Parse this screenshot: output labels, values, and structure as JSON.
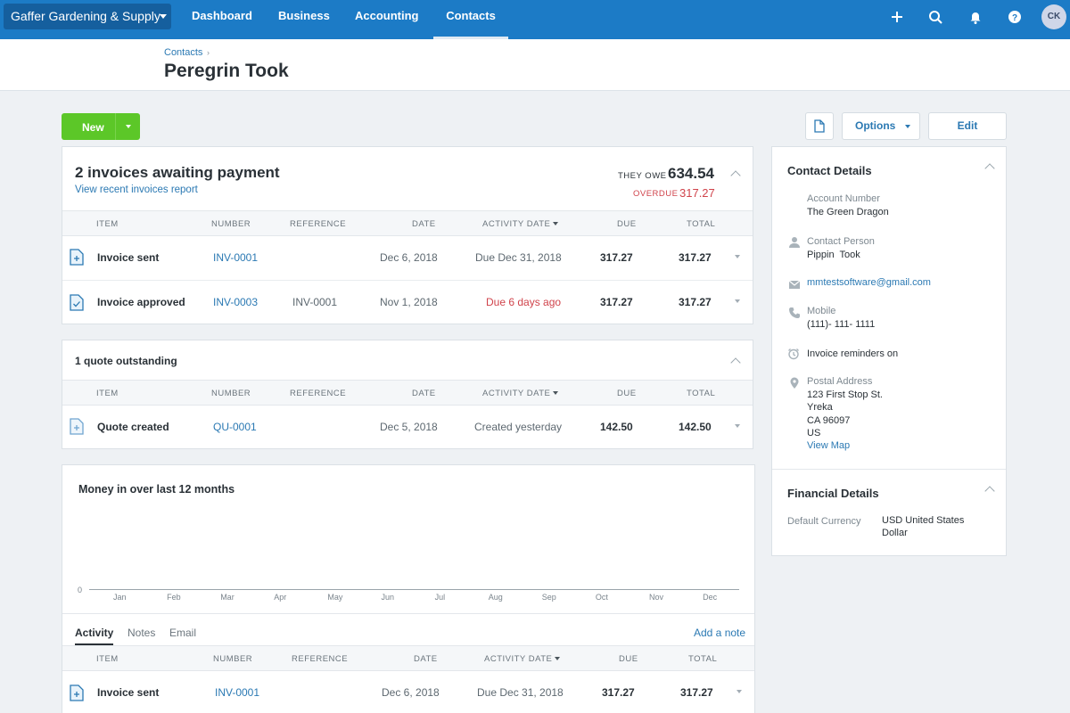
{
  "nav": {
    "org_name": "Gaffer Gardening & Supply",
    "links": [
      "Dashboard",
      "Business",
      "Accounting",
      "Contacts"
    ],
    "active": "Contacts",
    "avatar_initials": "CK"
  },
  "header": {
    "breadcrumb": "Contacts",
    "title": "Peregrin Took"
  },
  "actions": {
    "new_label": "New",
    "options_label": "Options",
    "edit_label": "Edit"
  },
  "invoices": {
    "title": "2 invoices awaiting payment",
    "report_link": "View recent invoices report",
    "they_owe_label": "THEY OWE",
    "they_owe_amount": "634.54",
    "overdue_label": "OVERDUE",
    "overdue_amount": "317.27",
    "columns": [
      "ITEM",
      "NUMBER",
      "REFERENCE",
      "DATE",
      "ACTIVITY DATE",
      "DUE",
      "TOTAL"
    ],
    "rows": [
      {
        "item": "Invoice sent",
        "number": "INV-0001",
        "reference": "",
        "date": "Dec 6, 2018",
        "activity": "Due Dec 31, 2018",
        "due": "317.27",
        "total": "317.27"
      },
      {
        "item": "Invoice approved",
        "number": "INV-0003",
        "reference": "INV-0001",
        "date": "Nov 1, 2018",
        "activity": "Due 6 days ago",
        "due": "317.27",
        "total": "317.27"
      }
    ]
  },
  "quotes": {
    "title": "1 quote outstanding",
    "columns": [
      "ITEM",
      "NUMBER",
      "REFERENCE",
      "DATE",
      "ACTIVITY DATE",
      "DUE",
      "TOTAL"
    ],
    "rows": [
      {
        "item": "Quote created",
        "number": "QU-0001",
        "reference": "",
        "date": "Dec 5, 2018",
        "activity": "Created yesterday",
        "due": "142.50",
        "total": "142.50"
      }
    ]
  },
  "money": {
    "title": "Money in over last 12 months",
    "zero_label": "0",
    "months": [
      "Jan",
      "Feb",
      "Mar",
      "Apr",
      "May",
      "Jun",
      "Jul",
      "Aug",
      "Sep",
      "Oct",
      "Nov",
      "Dec"
    ]
  },
  "activity": {
    "tabs": [
      "Activity",
      "Notes",
      "Email"
    ],
    "active_tab": "Activity",
    "add_note": "Add a note",
    "columns": [
      "ITEM",
      "NUMBER",
      "REFERENCE",
      "DATE",
      "ACTIVITY DATE",
      "DUE",
      "TOTAL"
    ],
    "rows": [
      {
        "item": "Invoice sent",
        "number": "INV-0001",
        "reference": "",
        "date": "Dec 6, 2018",
        "activity": "Due Dec 31, 2018",
        "due": "317.27",
        "total": "317.27"
      }
    ]
  },
  "contact": {
    "title": "Contact Details",
    "account_number_label": "Account Number",
    "account_number": "The Green Dragon",
    "contact_person_label": "Contact Person",
    "contact_person": "Pippin  Took",
    "email": "mmtestsoftware@gmail.com",
    "mobile_label": "Mobile",
    "mobile": "(111)- 111- 1111",
    "reminders": "Invoice reminders on",
    "postal_label": "Postal Address",
    "postal_lines": [
      "123 First Stop St.",
      "Yreka",
      "CA 96097",
      "US"
    ],
    "view_map": "View Map"
  },
  "financial": {
    "title": "Financial Details",
    "currency_label": "Default Currency",
    "currency_line1": "USD United States",
    "currency_line2": "Dollar"
  },
  "colors": {
    "nav": "#1c7bc6",
    "accent_green": "#5cc728",
    "link": "#2b79b3",
    "overdue": "#d0434b"
  }
}
